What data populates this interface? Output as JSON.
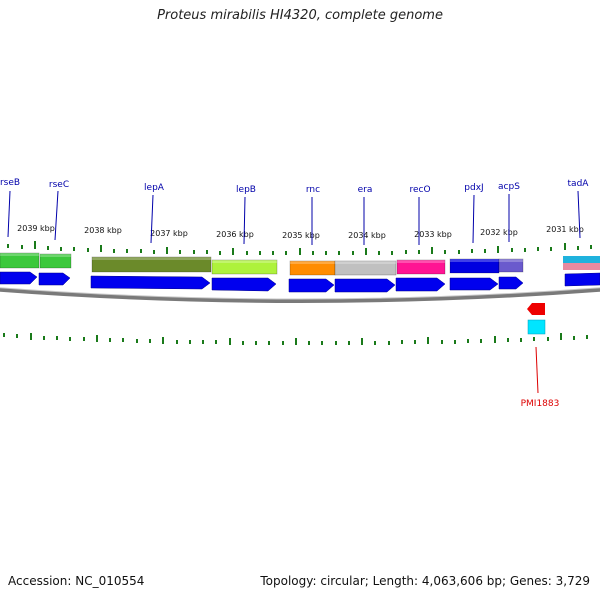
{
  "title": "Proteus mirabilis HI4320, complete genome",
  "footer": {
    "accession": "Accession: NC_010554",
    "summary": "Topology: circular; Length: 4,063,606 bp; Genes: 3,729"
  },
  "scale_labels": [
    "2039 kbp",
    "2038 kbp",
    "2037 kbp",
    "2036 kbp",
    "2035 kbp",
    "2034 kbp",
    "2033 kbp",
    "2032 kbp",
    "2031 kbp"
  ],
  "gene_labels": [
    "rseB",
    "rseC",
    "lepA",
    "lepB",
    "rnc",
    "era",
    "recO",
    "pdxJ",
    "acpS",
    "tadA"
  ],
  "gene_colors": [
    "#3cc83c",
    "#3cc83c",
    "#6b8a2a",
    "#aef23c",
    "#ff8c00",
    "#c0c0c0",
    "#ff1493",
    "#0000e0",
    "#6a5acd",
    "#20b2dd"
  ],
  "minus_strand_labels": [
    "PMI1883"
  ],
  "colors": {
    "label": "#0000aa",
    "minus_label": "#dd0000",
    "cds": "#0000ee",
    "tick": "#1a7a1a",
    "backbone": "#808080"
  }
}
